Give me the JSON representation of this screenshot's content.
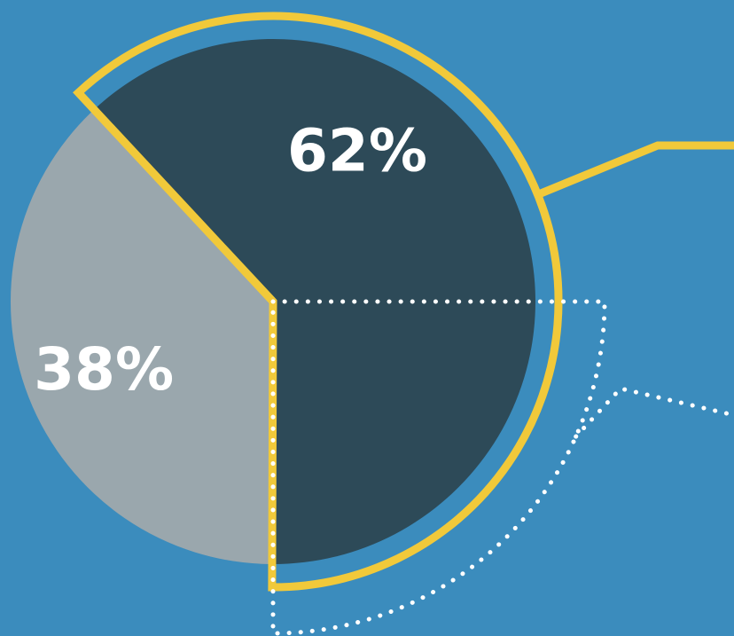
{
  "colors": {
    "background": "#3b8cbd",
    "dark_slice": "#2d4a58",
    "light_slice": "#9aa7ad",
    "highlight_outline": "#f1c93a",
    "dotted_outline": "#ffffff"
  },
  "chart_data": {
    "type": "pie",
    "title": "",
    "slices": [
      {
        "label": "62%",
        "value": 62,
        "color": "#2d4a58",
        "highlighted": true
      },
      {
        "label": "38%",
        "value": 38,
        "color": "#9aa7ad",
        "highlighted": false
      }
    ],
    "sub_highlight_percent": 25,
    "legend": "none"
  }
}
